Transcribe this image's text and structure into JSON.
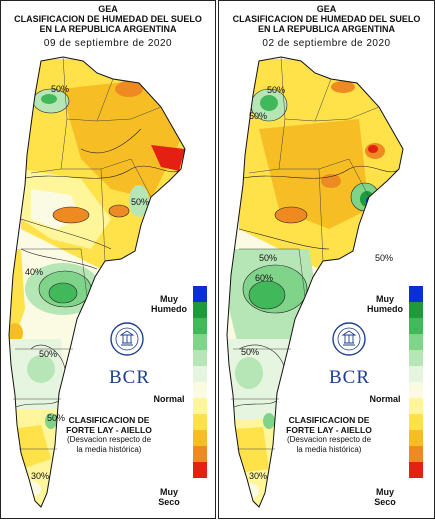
{
  "panels": [
    {
      "org": "GEA",
      "title_line1": "CLASIFICACION DE HUMEDAD DEL SUELO",
      "title_line2": "EN LA REPUBLICA ARGENTINA",
      "date": "09 de septiembre de 2020",
      "contour_labels": [
        "50%",
        "50%",
        "40%",
        "50%",
        "50%",
        "30%"
      ]
    },
    {
      "org": "GEA",
      "title_line1": "CLASIFICACION DE HUMEDAD DEL SUELO",
      "title_line2": "EN LA REPUBLICA ARGENTINA",
      "date": "02 de septiembre de 2020",
      "contour_labels": [
        "50%",
        "50%",
        "50%",
        "60%",
        "50%",
        "50%",
        "30%"
      ]
    }
  ],
  "legend": {
    "top_label_line1": "Muy",
    "top_label_line2": "Humedo",
    "mid_label": "Normal",
    "bottom_label_line1": "Muy",
    "bottom_label_line2": "Seco",
    "colors": [
      "#0a2fd6",
      "#1e9b3a",
      "#41b95a",
      "#7fd48a",
      "#b7e6b6",
      "#e6f5df",
      "#fbfbe4",
      "#fff59a",
      "#ffe14a",
      "#f6be24",
      "#ef8a22",
      "#e32012"
    ]
  },
  "brand": {
    "name": "BCR",
    "seal_text": "BOLSA DE COMERCIO DE ROSARIO"
  },
  "classification": {
    "line1": "CLASIFICACION DE",
    "line2": "FORTE LAY - AIELLO",
    "line3": "(Desvacion respecto de",
    "line4": "la media histórica)"
  }
}
